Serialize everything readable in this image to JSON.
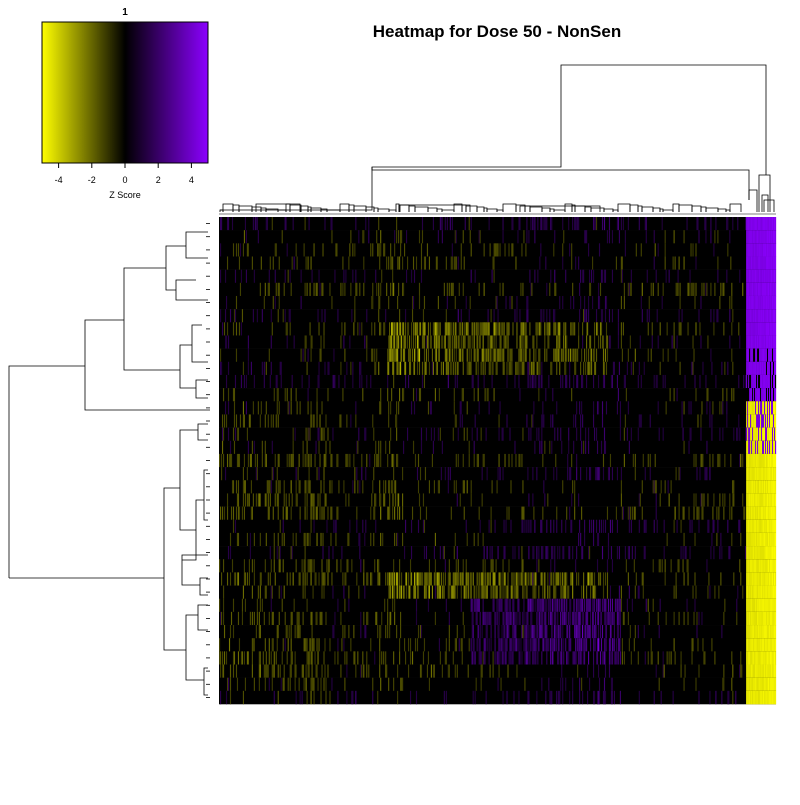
{
  "chart_data": {
    "type": "heatmap",
    "title": "Heatmap for Dose 50  -  NonSen",
    "color_key": {
      "title": "1",
      "xlabel": "Z Score",
      "range": [
        -5,
        5
      ],
      "ticks": [
        -4,
        -2,
        0,
        2,
        4
      ],
      "tick_labels": [
        "-4",
        "-2",
        "0",
        "2",
        "4"
      ],
      "low_color": "#ffff00",
      "mid_color": "#000000",
      "high_color": "#8b00ff"
    },
    "row_count": 37,
    "column_count": 560,
    "row_dendrogram": true,
    "column_dendrogram": true,
    "value_range": [
      -5,
      5
    ]
  }
}
